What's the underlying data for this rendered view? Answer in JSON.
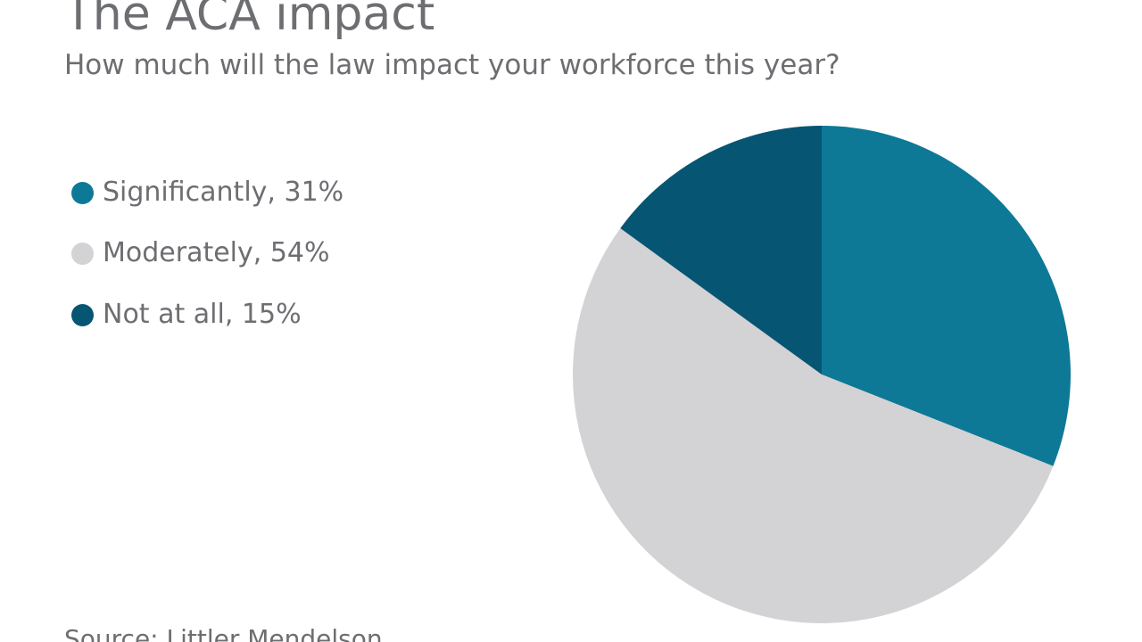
{
  "title": "The ACA impact",
  "subtitle": "How much will the law impact your workforce this year?",
  "source": "Source: Littler Mendelson",
  "chart_data": {
    "type": "pie",
    "title": "The ACA impact",
    "subtitle": "How much will the law impact your workforce this year?",
    "legend_position": "left",
    "slices": [
      {
        "label": "Significantly",
        "value": 31,
        "legend_text": "Significantly, 31%",
        "color": "#0e7897"
      },
      {
        "label": "Moderately",
        "value": 54,
        "legend_text": "Moderately, 54%",
        "color": "#d3d2d4"
      },
      {
        "label": "Not at all",
        "value": 15,
        "legend_text": "Not at all, 15%",
        "color": "#065572"
      }
    ]
  }
}
